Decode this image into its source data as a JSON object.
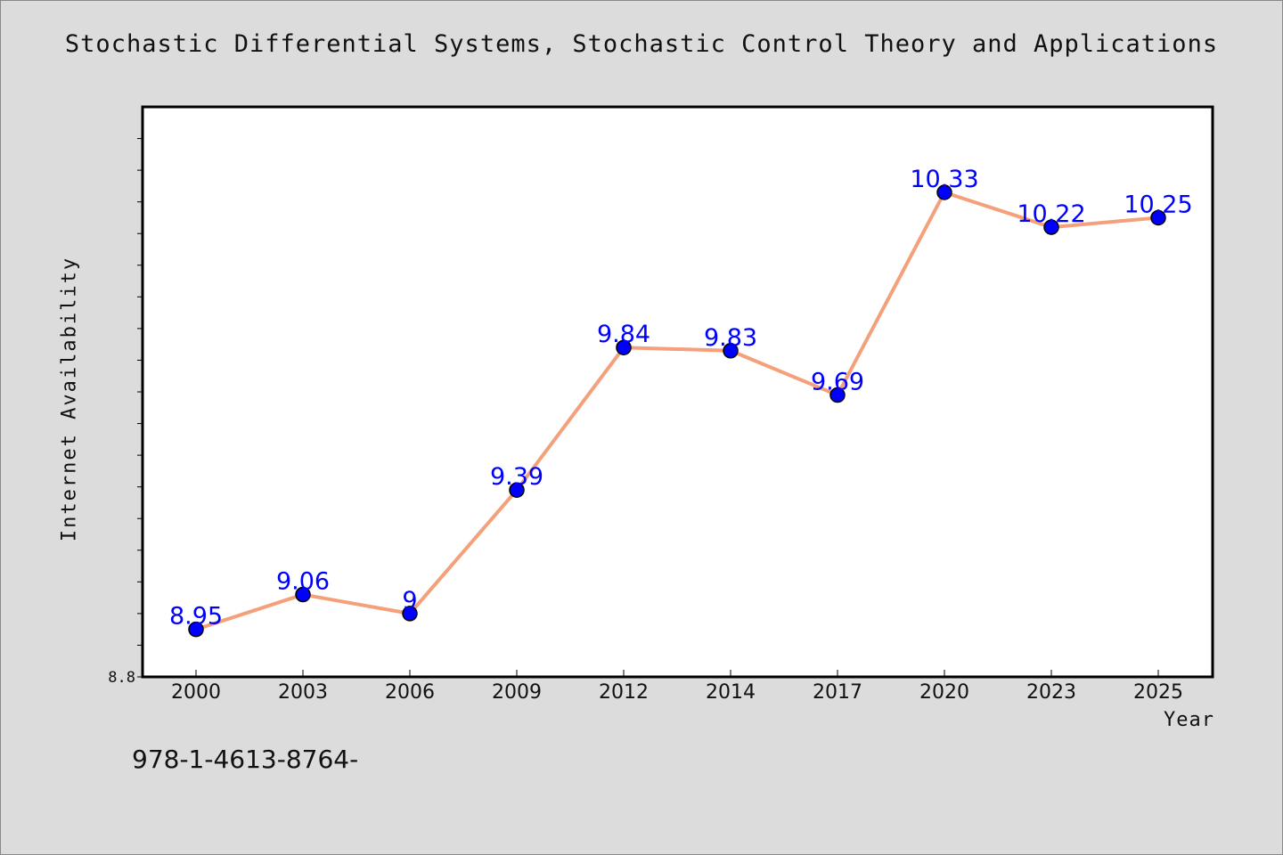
{
  "chart_data": {
    "type": "line",
    "title": "Stochastic Differential Systems, Stochastic Control Theory and Applications",
    "xlabel": "Year",
    "ylabel": "Internet Availability",
    "categories": [
      "2000",
      "2003",
      "2006",
      "2009",
      "2012",
      "2014",
      "2017",
      "2020",
      "2023",
      "2025"
    ],
    "series": [
      {
        "values": [
          8.95,
          9.06,
          9,
          9.39,
          9.84,
          9.83,
          9.69,
          10.33,
          10.22,
          10.25
        ],
        "data_labels": [
          "8.95",
          "9.06",
          "9",
          "9.39",
          "9.84",
          "9.83",
          "9.69",
          "10.33",
          "10.22",
          "10.25"
        ]
      }
    ],
    "ylim": [
      8.8,
      10.6
    ],
    "y_tick_labels": [
      "8.8"
    ],
    "grid": false,
    "colors": {
      "line": "#f4a07a",
      "marker": "#0000ff",
      "data_label": "#0000ff",
      "plot_background": "#ffffff",
      "page_background": "#dcdcdc"
    }
  },
  "footnote": "978-1-4613-8764-"
}
